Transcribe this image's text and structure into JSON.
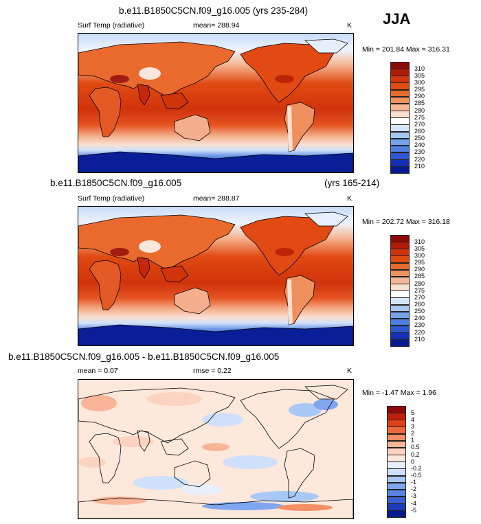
{
  "season": "JJA",
  "panels": [
    {
      "title": "b.e11.B1850C5CN.f09_g16.005 (yrs 235-284)",
      "variable": "Surf Temp (radiative)",
      "mean": "mean= 288.94",
      "units": "K",
      "minmax": "Min = 201.84 Max = 316.31",
      "pattern": "temp",
      "colorbar_labels": [
        "310",
        "305",
        "300",
        "295",
        "290",
        "285",
        "280",
        "275",
        "270",
        "260",
        "250",
        "240",
        "230",
        "220",
        "210"
      ],
      "colorbar_colors": [
        "#8c0a0a",
        "#b01a06",
        "#d1330b",
        "#e14a12",
        "#ea6a2e",
        "#f0905e",
        "#f6b896",
        "#fce0cf",
        "#ffffff",
        "#d6e6fb",
        "#a6c8f5",
        "#78a3ec",
        "#4f7fe1",
        "#2d57d3",
        "#1530b6",
        "#071a92"
      ]
    },
    {
      "title": "b.e11.B1850C5CN.f09_g16.005",
      "title_right": "(yrs 165-214)",
      "variable": "Surf Temp (radiative)",
      "mean": "mean= 288.87",
      "units": "K",
      "minmax": "Min = 202.72 Max = 316.18",
      "pattern": "temp",
      "colorbar_labels": [
        "310",
        "305",
        "300",
        "295",
        "290",
        "285",
        "280",
        "275",
        "270",
        "260",
        "250",
        "240",
        "230",
        "220",
        "210"
      ],
      "colorbar_colors": [
        "#8c0a0a",
        "#b01a06",
        "#d1330b",
        "#e14a12",
        "#ea6a2e",
        "#f0905e",
        "#f6b896",
        "#fce0cf",
        "#ffffff",
        "#d6e6fb",
        "#a6c8f5",
        "#78a3ec",
        "#4f7fe1",
        "#2d57d3",
        "#1530b6",
        "#071a92"
      ]
    },
    {
      "title": "b.e11.B1850C5CN.f09_g16.005 - b.e11.B1850C5CN.f09_g16.005",
      "mean": "mean =   0.07",
      "rmse": "rmse =   0.22",
      "units": "K",
      "minmax": "Min =  -1.47 Max =   1.96",
      "pattern": "diff",
      "colorbar_labels": [
        "5",
        "4",
        "3",
        "2",
        "1",
        "0.5",
        "0.2",
        "0",
        "-0.2",
        "-0.5",
        "-1",
        "-2",
        "-3",
        "-4",
        "-5"
      ],
      "colorbar_colors": [
        "#8c0a0a",
        "#c0200a",
        "#e0401a",
        "#ee6a3c",
        "#f48f66",
        "#f8b598",
        "#fbd3c0",
        "#fde8dc",
        "#e8f0fd",
        "#cfe0fb",
        "#aac8f5",
        "#7fa6ee",
        "#5a84e2",
        "#3a5fd2",
        "#1d3ab8",
        "#061a90"
      ]
    }
  ]
}
